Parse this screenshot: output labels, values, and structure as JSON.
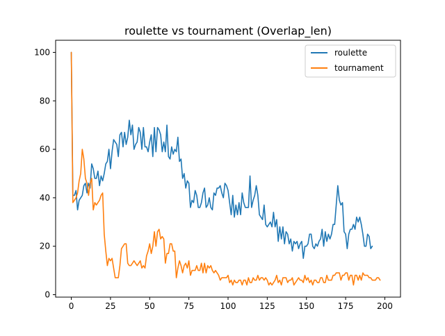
{
  "chart_data": {
    "type": "line",
    "title": "roulette vs tournament (Overlap_len)",
    "xlabel": "",
    "ylabel": "",
    "xlim": [
      -10,
      210
    ],
    "ylim": [
      -1,
      105
    ],
    "xticks": [
      0,
      25,
      50,
      75,
      100,
      125,
      150,
      175,
      200
    ],
    "yticks": [
      0,
      20,
      40,
      60,
      80,
      100
    ],
    "grid": false,
    "legend_position": "upper right",
    "series": [
      {
        "name": "roulette",
        "color": "#1f77b4",
        "values": [
          100,
          41,
          41,
          43,
          35,
          39,
          40,
          41,
          45,
          46,
          42,
          46,
          44,
          54,
          52,
          48,
          48,
          51,
          45,
          49,
          47,
          50,
          54,
          55,
          60,
          52,
          59,
          64,
          63,
          62,
          57,
          66,
          67,
          61,
          67,
          62,
          65,
          72,
          66,
          70,
          60,
          62,
          63,
          69,
          67,
          60,
          69,
          61,
          61,
          59,
          63,
          66,
          57,
          69,
          59,
          69,
          68,
          66,
          59,
          63,
          59,
          70,
          57,
          56,
          61,
          58,
          60,
          59,
          65,
          55,
          56,
          48,
          50,
          44,
          47,
          46,
          36,
          39,
          38,
          43,
          41,
          36,
          36,
          38,
          42,
          44,
          36,
          37,
          40,
          36,
          35,
          42,
          41,
          44,
          44,
          45,
          42,
          40,
          46,
          45,
          43,
          38,
          33,
          41,
          32,
          37,
          33,
          38,
          33,
          42,
          38,
          36,
          36,
          36,
          49,
          36,
          39,
          41,
          45,
          41,
          33,
          32,
          31,
          37,
          29,
          28,
          29,
          30,
          28,
          34,
          28,
          31,
          22,
          28,
          23,
          28,
          21,
          26,
          25,
          21,
          23,
          18,
          22,
          21,
          22,
          19,
          21,
          22,
          15,
          20,
          20,
          21,
          25,
          25,
          20,
          19,
          21,
          20,
          22,
          23,
          27,
          20,
          26,
          22,
          25,
          23,
          25,
          29,
          29,
          37,
          45,
          39,
          37,
          38,
          26,
          25,
          19,
          25,
          27,
          27,
          29,
          27,
          32,
          30,
          32,
          29,
          25,
          20,
          20,
          25,
          24,
          19,
          20
        ]
      },
      {
        "name": "tournament",
        "color": "#ff7f0e",
        "values": [
          100,
          38,
          39,
          40,
          42,
          47,
          50,
          60,
          56,
          48,
          46,
          41,
          46,
          48,
          35,
          38,
          37,
          38,
          39,
          41,
          42,
          25,
          18,
          12,
          15,
          14,
          15,
          11,
          7,
          7,
          7,
          12,
          19,
          20,
          21,
          21,
          13,
          12,
          12,
          13,
          14,
          13,
          12,
          13,
          14,
          11,
          12,
          11,
          16,
          18,
          21,
          17,
          20,
          26,
          20,
          26,
          27,
          23,
          24,
          23,
          13,
          17,
          17,
          21,
          21,
          18,
          18,
          7,
          11,
          14,
          12,
          9,
          12,
          13,
          11,
          14,
          8,
          10,
          10,
          10,
          12,
          10,
          10,
          13,
          9,
          13,
          9,
          12,
          11,
          12,
          10,
          9,
          10,
          9,
          8,
          6,
          7,
          7,
          7,
          7,
          8,
          5,
          6,
          4,
          6,
          5,
          5,
          6,
          6,
          4,
          6,
          6,
          4,
          7,
          5,
          5,
          7,
          6,
          6,
          8,
          6,
          7,
          7,
          6,
          7,
          6,
          4,
          5,
          4,
          5,
          6,
          8,
          5,
          6,
          4,
          7,
          7,
          7,
          5,
          6,
          6,
          7,
          4,
          5,
          6,
          7,
          6,
          6,
          5,
          8,
          6,
          7,
          5,
          6,
          4,
          6,
          6,
          5,
          5,
          7,
          7,
          5,
          5,
          8,
          6,
          6,
          6,
          8,
          8,
          9,
          9,
          9,
          6,
          8,
          8,
          9,
          9,
          6,
          8,
          8,
          4,
          8,
          8,
          6,
          8,
          6,
          9,
          8,
          8,
          8,
          7,
          7,
          6,
          6,
          6,
          7,
          7,
          6
        ]
      }
    ]
  }
}
